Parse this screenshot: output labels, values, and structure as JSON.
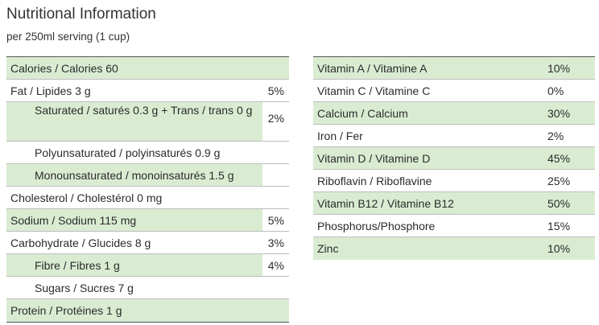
{
  "header": {
    "title": "Nutritional Information",
    "subtitle": "per 250ml serving (1 cup)"
  },
  "left_table": [
    {
      "label": "Calories / Calories 60",
      "pct": ""
    },
    {
      "label": "Fat / Lipides 3 g",
      "pct": "5%"
    },
    {
      "label": "Saturated / saturés 0.3 g + Trans / trans 0 g",
      "pct": "2%"
    },
    {
      "label": "Polyunsaturated / polyinsaturés 0.9 g",
      "pct": ""
    },
    {
      "label": "Monounsaturated / monoinsaturés 1.5 g",
      "pct": ""
    },
    {
      "label": "Cholesterol / Cholestérol 0 mg",
      "pct": ""
    },
    {
      "label": "Sodium / Sodium 115 mg",
      "pct": "5%"
    },
    {
      "label": "Carbohydrate / Glucides 8 g",
      "pct": "3%"
    },
    {
      "label": "Fibre / Fibres 1 g",
      "pct": "4%"
    },
    {
      "label": "Sugars / Sucres 7 g",
      "pct": ""
    },
    {
      "label": "Protein / Protéines 1 g",
      "pct": ""
    }
  ],
  "right_table": [
    {
      "label": "Vitamin A / Vitamine A",
      "pct": "10%"
    },
    {
      "label": "Vitamin C / Vitamine C",
      "pct": "0%"
    },
    {
      "label": "Calcium / Calcium",
      "pct": "30%"
    },
    {
      "label": "Iron / Fer",
      "pct": "2%"
    },
    {
      "label": "Vitamin D / Vitamine D",
      "pct": "45%"
    },
    {
      "label": "Riboflavin / Riboflavine",
      "pct": "25%"
    },
    {
      "label": "Vitamin B12 / Vitamine B12",
      "pct": "50%"
    },
    {
      "label": "Phosphorus/Phosphore",
      "pct": "15%"
    },
    {
      "label": "Zinc",
      "pct": "10%"
    }
  ],
  "colors": {
    "shade": "#d9ecd2",
    "rule": "#555555"
  }
}
